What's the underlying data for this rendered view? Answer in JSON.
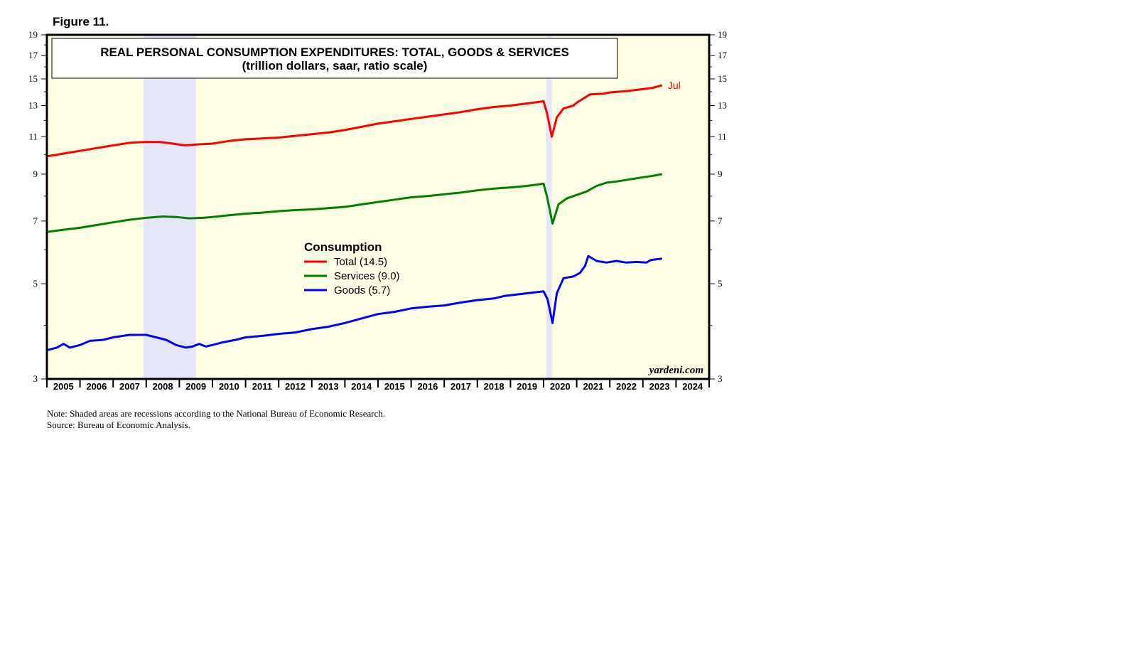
{
  "figure_label": "Figure 11.",
  "notes": {
    "line1": "Note: Shaded areas are recessions according to the National Bureau of Economic Research.",
    "line2": "Source: Bureau of Economic Analysis."
  },
  "watermark": "yardeni.com",
  "chart_data": {
    "type": "line",
    "title": "REAL PERSONAL CONSUMPTION EXPENDITURES: TOTAL, GOODS & SERVICES",
    "subtitle": "(trillion dollars, saar, ratio scale)",
    "y_scale": "log",
    "ylim": [
      3,
      19
    ],
    "y_ticks": [
      3,
      5,
      7,
      9,
      11,
      13,
      15,
      17,
      19
    ],
    "x_range": [
      2005,
      2025
    ],
    "x_labels": [
      "2005",
      "2006",
      "2007",
      "2008",
      "2009",
      "2010",
      "2011",
      "2012",
      "2013",
      "2014",
      "2015",
      "2016",
      "2017",
      "2018",
      "2019",
      "2020",
      "2021",
      "2022",
      "2023",
      "2024"
    ],
    "recessions": [
      [
        2007.92,
        2009.5
      ],
      [
        2020.08,
        2020.25
      ]
    ],
    "legend_title": "Consumption",
    "end_label": "Jul",
    "series": [
      {
        "name": "Total",
        "legend": "Total (14.5)",
        "color": "#ff0000",
        "points": [
          [
            2005.0,
            9.9
          ],
          [
            2005.5,
            10.05
          ],
          [
            2006.0,
            10.2
          ],
          [
            2006.5,
            10.35
          ],
          [
            2007.0,
            10.5
          ],
          [
            2007.5,
            10.65
          ],
          [
            2008.0,
            10.7
          ],
          [
            2008.4,
            10.7
          ],
          [
            2008.8,
            10.6
          ],
          [
            2009.2,
            10.5
          ],
          [
            2009.5,
            10.55
          ],
          [
            2010.0,
            10.6
          ],
          [
            2010.5,
            10.75
          ],
          [
            2011.0,
            10.85
          ],
          [
            2011.5,
            10.9
          ],
          [
            2012.0,
            10.95
          ],
          [
            2012.5,
            11.05
          ],
          [
            2013.0,
            11.15
          ],
          [
            2013.5,
            11.25
          ],
          [
            2014.0,
            11.4
          ],
          [
            2014.5,
            11.6
          ],
          [
            2015.0,
            11.8
          ],
          [
            2015.5,
            11.95
          ],
          [
            2016.0,
            12.1
          ],
          [
            2016.5,
            12.25
          ],
          [
            2017.0,
            12.4
          ],
          [
            2017.5,
            12.55
          ],
          [
            2018.0,
            12.75
          ],
          [
            2018.5,
            12.9
          ],
          [
            2019.0,
            13.0
          ],
          [
            2019.5,
            13.15
          ],
          [
            2020.0,
            13.3
          ],
          [
            2020.1,
            12.5
          ],
          [
            2020.25,
            11.0
          ],
          [
            2020.4,
            12.2
          ],
          [
            2020.6,
            12.8
          ],
          [
            2020.9,
            13.0
          ],
          [
            2021.0,
            13.2
          ],
          [
            2021.2,
            13.5
          ],
          [
            2021.4,
            13.8
          ],
          [
            2021.8,
            13.85
          ],
          [
            2022.0,
            13.95
          ],
          [
            2022.5,
            14.05
          ],
          [
            2023.0,
            14.2
          ],
          [
            2023.3,
            14.3
          ],
          [
            2023.58,
            14.5
          ]
        ]
      },
      {
        "name": "Services",
        "legend": "Services (9.0)",
        "color": "#008000",
        "points": [
          [
            2005.0,
            6.6
          ],
          [
            2005.5,
            6.68
          ],
          [
            2006.0,
            6.75
          ],
          [
            2006.5,
            6.85
          ],
          [
            2007.0,
            6.95
          ],
          [
            2007.5,
            7.05
          ],
          [
            2008.0,
            7.12
          ],
          [
            2008.5,
            7.17
          ],
          [
            2008.9,
            7.15
          ],
          [
            2009.3,
            7.1
          ],
          [
            2009.7,
            7.12
          ],
          [
            2010.0,
            7.15
          ],
          [
            2010.5,
            7.22
          ],
          [
            2011.0,
            7.28
          ],
          [
            2011.5,
            7.32
          ],
          [
            2012.0,
            7.38
          ],
          [
            2012.5,
            7.42
          ],
          [
            2013.0,
            7.45
          ],
          [
            2013.5,
            7.5
          ],
          [
            2014.0,
            7.55
          ],
          [
            2014.5,
            7.65
          ],
          [
            2015.0,
            7.75
          ],
          [
            2015.5,
            7.85
          ],
          [
            2016.0,
            7.95
          ],
          [
            2016.5,
            8.0
          ],
          [
            2017.0,
            8.08
          ],
          [
            2017.5,
            8.15
          ],
          [
            2018.0,
            8.25
          ],
          [
            2018.5,
            8.33
          ],
          [
            2019.0,
            8.38
          ],
          [
            2019.5,
            8.45
          ],
          [
            2020.0,
            8.55
          ],
          [
            2020.1,
            8.0
          ],
          [
            2020.27,
            6.9
          ],
          [
            2020.45,
            7.65
          ],
          [
            2020.7,
            7.9
          ],
          [
            2020.9,
            8.0
          ],
          [
            2021.0,
            8.05
          ],
          [
            2021.3,
            8.2
          ],
          [
            2021.6,
            8.45
          ],
          [
            2021.9,
            8.6
          ],
          [
            2022.2,
            8.65
          ],
          [
            2022.6,
            8.75
          ],
          [
            2023.0,
            8.85
          ],
          [
            2023.3,
            8.92
          ],
          [
            2023.58,
            9.0
          ]
        ]
      },
      {
        "name": "Goods",
        "legend": "Goods (5.7)",
        "color": "#0000ff",
        "points": [
          [
            2005.0,
            3.5
          ],
          [
            2005.3,
            3.55
          ],
          [
            2005.5,
            3.62
          ],
          [
            2005.7,
            3.55
          ],
          [
            2006.0,
            3.6
          ],
          [
            2006.3,
            3.68
          ],
          [
            2006.7,
            3.7
          ],
          [
            2007.0,
            3.75
          ],
          [
            2007.5,
            3.8
          ],
          [
            2008.0,
            3.8
          ],
          [
            2008.3,
            3.75
          ],
          [
            2008.6,
            3.7
          ],
          [
            2008.9,
            3.6
          ],
          [
            2009.2,
            3.55
          ],
          [
            2009.4,
            3.57
          ],
          [
            2009.6,
            3.62
          ],
          [
            2009.8,
            3.57
          ],
          [
            2010.0,
            3.6
          ],
          [
            2010.3,
            3.65
          ],
          [
            2010.7,
            3.7
          ],
          [
            2011.0,
            3.75
          ],
          [
            2011.5,
            3.78
          ],
          [
            2012.0,
            3.82
          ],
          [
            2012.5,
            3.85
          ],
          [
            2013.0,
            3.92
          ],
          [
            2013.5,
            3.97
          ],
          [
            2014.0,
            4.05
          ],
          [
            2014.5,
            4.15
          ],
          [
            2015.0,
            4.25
          ],
          [
            2015.5,
            4.3
          ],
          [
            2016.0,
            4.38
          ],
          [
            2016.5,
            4.42
          ],
          [
            2017.0,
            4.45
          ],
          [
            2017.5,
            4.52
          ],
          [
            2018.0,
            4.58
          ],
          [
            2018.5,
            4.62
          ],
          [
            2018.8,
            4.68
          ],
          [
            2019.0,
            4.7
          ],
          [
            2019.5,
            4.75
          ],
          [
            2020.0,
            4.8
          ],
          [
            2020.12,
            4.6
          ],
          [
            2020.27,
            4.05
          ],
          [
            2020.4,
            4.75
          ],
          [
            2020.6,
            5.15
          ],
          [
            2020.9,
            5.2
          ],
          [
            2021.1,
            5.3
          ],
          [
            2021.25,
            5.5
          ],
          [
            2021.35,
            5.8
          ],
          [
            2021.6,
            5.65
          ],
          [
            2021.9,
            5.6
          ],
          [
            2022.2,
            5.65
          ],
          [
            2022.5,
            5.6
          ],
          [
            2022.8,
            5.62
          ],
          [
            2023.1,
            5.6
          ],
          [
            2023.25,
            5.68
          ],
          [
            2023.58,
            5.72
          ]
        ]
      }
    ]
  }
}
